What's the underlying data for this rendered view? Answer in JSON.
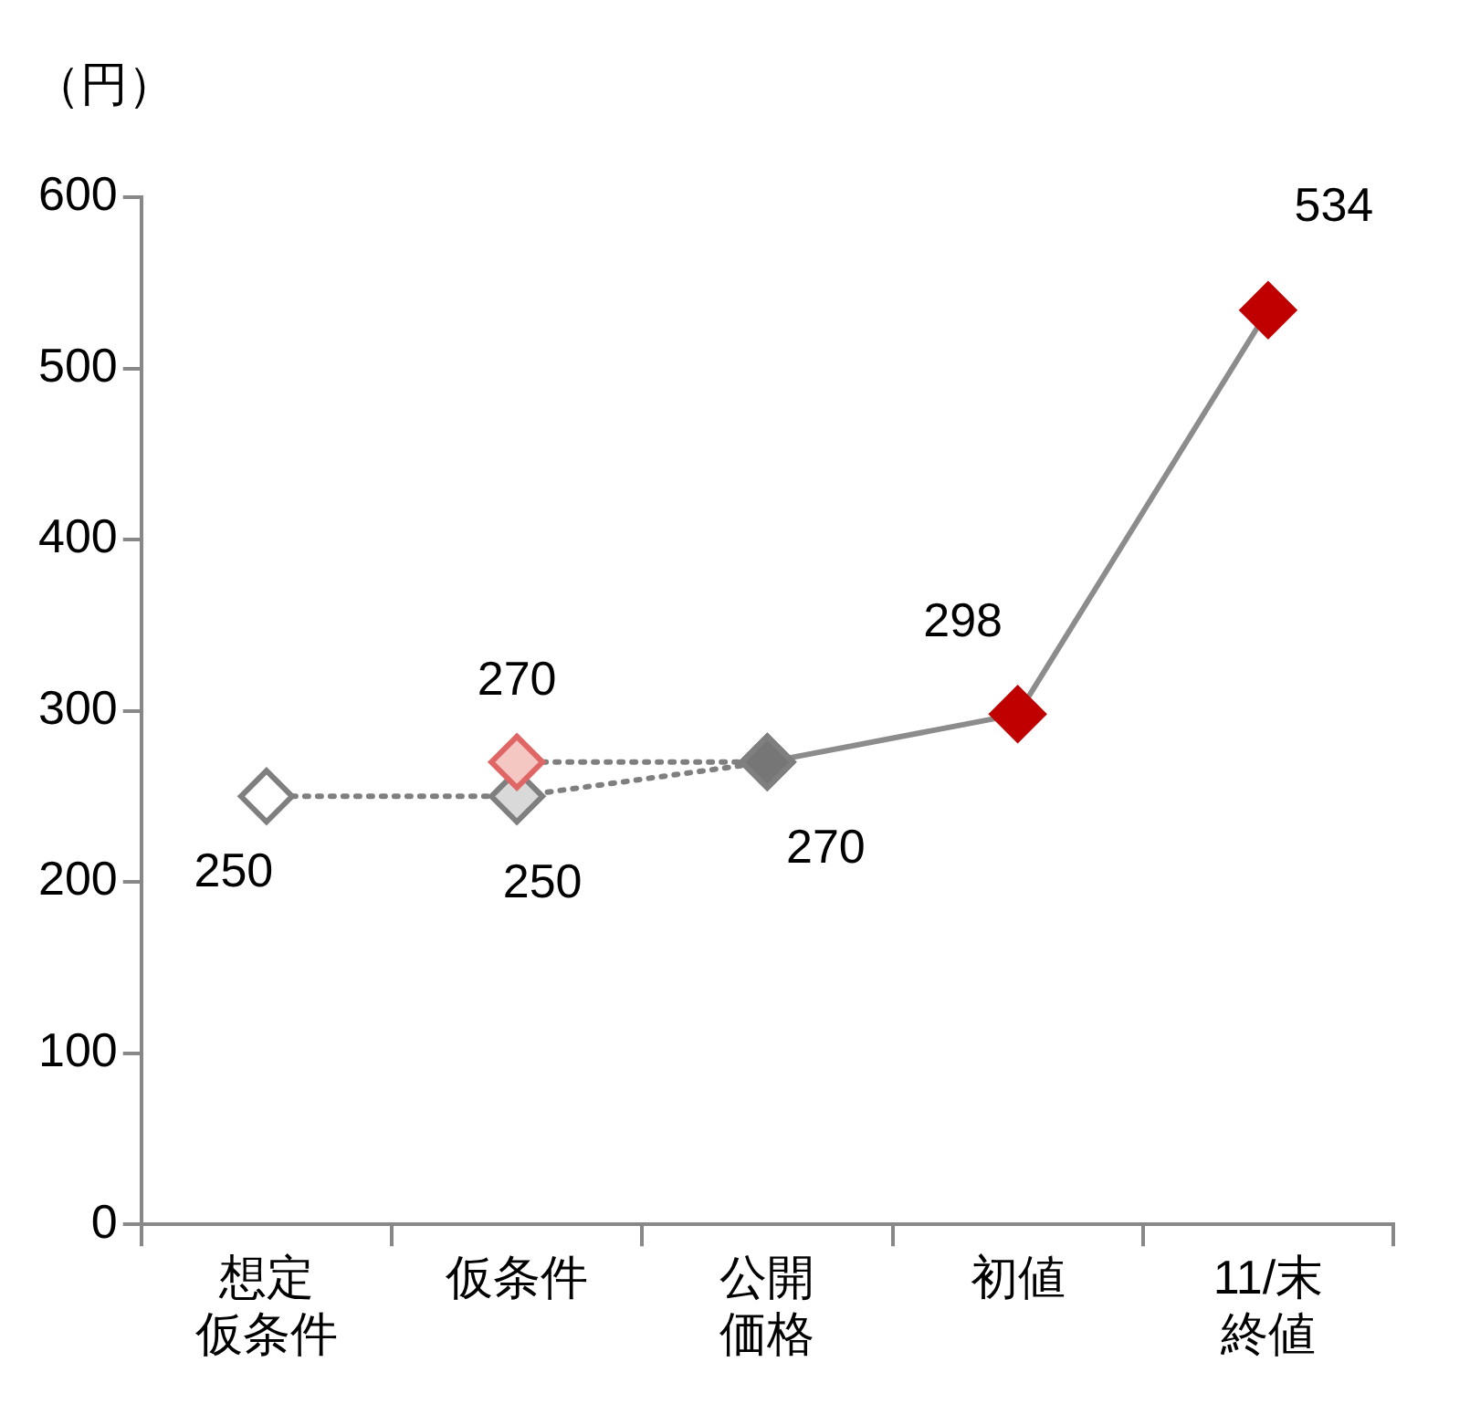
{
  "chart_data": {
    "type": "line",
    "ylabel": "（円）",
    "categories": [
      "想定仮条件",
      "仮条件",
      "公開価格",
      "初値",
      "11/末終値"
    ],
    "ylim": [
      0,
      600
    ],
    "yticks": [
      0,
      100,
      200,
      300,
      400,
      500,
      600
    ],
    "grid": false,
    "legend": false,
    "marker": "diamond",
    "series": [
      {
        "color": "#7f7f7f",
        "line_style": "dotted",
        "values": [
          250,
          250,
          270,
          null,
          null
        ],
        "colors": [
          "#ffffff",
          "#d9d9d9",
          "#767676",
          null,
          null
        ],
        "value_labels": [
          "250",
          "250",
          null,
          null,
          null
        ]
      },
      {
        "color": "#7f7f7f",
        "line_style": "dotted",
        "values": [
          null,
          270,
          270,
          null,
          null
        ],
        "colors": [
          null,
          "#f4c7c3",
          "#767676",
          null,
          null
        ],
        "value_labels": [
          null,
          "270",
          null,
          null,
          null
        ]
      },
      {
        "color": "#8c8c8c",
        "line_style": "solid",
        "values": [
          null,
          null,
          270,
          298,
          534
        ],
        "colors": [
          null,
          null,
          "#767676",
          "#c00000",
          "#c00000"
        ],
        "value_labels": [
          null,
          null,
          "270",
          "298",
          "534"
        ]
      }
    ]
  }
}
